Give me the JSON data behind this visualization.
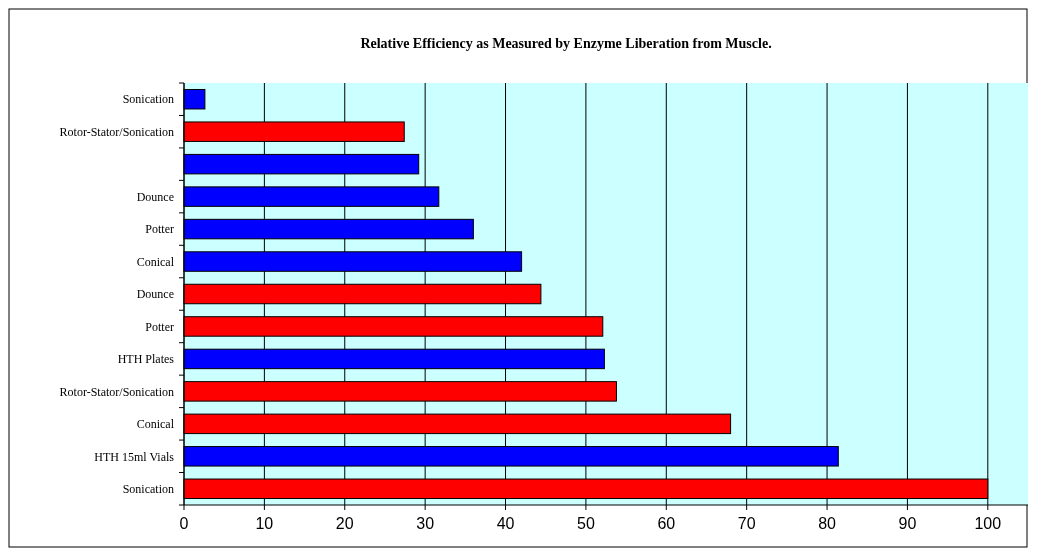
{
  "chart_data": {
    "type": "bar",
    "orientation": "horizontal",
    "title": "Relative Efficiency as Measured by Enzyme Liberation from Muscle.",
    "categories": [
      "Sonication",
      "Rotor-Stator/Sonication",
      null,
      "Dounce",
      "Potter",
      "Conical",
      "Dounce",
      "Potter",
      "HTH Plates",
      "Rotor-Stator/Sonication",
      "Conical",
      "HTH 15ml Vials",
      "Sonication"
    ],
    "values": [
      2.6,
      27.4,
      29.2,
      31.7,
      36.0,
      42.0,
      44.4,
      52.1,
      52.3,
      53.8,
      68.0,
      81.4,
      100
    ],
    "colors": [
      "#0000ff",
      "#ff0000",
      "#0000ff",
      "#0000ff",
      "#0000ff",
      "#0000ff",
      "#ff0000",
      "#ff0000",
      "#0000ff",
      "#ff0000",
      "#ff0000",
      "#0000ff",
      "#ff0000"
    ],
    "xlim": [
      0,
      105
    ],
    "xticks": [
      0,
      10,
      20,
      30,
      40,
      50,
      60,
      70,
      80,
      90,
      100
    ],
    "grid": "x"
  }
}
